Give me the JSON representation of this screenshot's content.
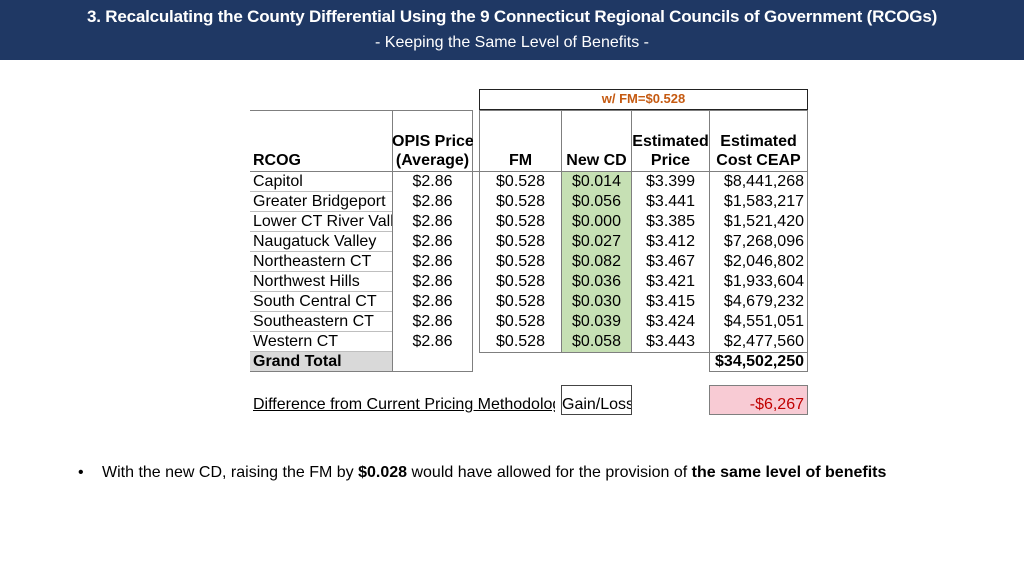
{
  "header": {
    "title": "3. Recalculating the County Differential Using the 9 Connecticut Regional Councils of Government (RCOGs)",
    "subtitle": "- Keeping the Same Level of Benefits -"
  },
  "table": {
    "fm_banner": "w/ FM=$0.528",
    "columns": {
      "rcog": "RCOG",
      "opis_line1": "OPIS Price",
      "opis_line2": "(Average)",
      "fm": "FM",
      "new_cd": "New CD",
      "est_price_line1": "Estimated",
      "est_price_line2": "Price",
      "est_cost_line1": "Estimated",
      "est_cost_line2": "Cost CEAP"
    },
    "rows": [
      {
        "rcog": "Capitol",
        "opis": "$2.86",
        "fm": "$0.528",
        "new_cd": "$0.014",
        "est_price": "$3.399",
        "est_cost": "$8,441,268"
      },
      {
        "rcog": "Greater Bridgeport",
        "opis": "$2.86",
        "fm": "$0.528",
        "new_cd": "$0.056",
        "est_price": "$3.441",
        "est_cost": "$1,583,217"
      },
      {
        "rcog": "Lower CT River Valley",
        "opis": "$2.86",
        "fm": "$0.528",
        "new_cd": "$0.000",
        "est_price": "$3.385",
        "est_cost": "$1,521,420"
      },
      {
        "rcog": "Naugatuck Valley",
        "opis": "$2.86",
        "fm": "$0.528",
        "new_cd": "$0.027",
        "est_price": "$3.412",
        "est_cost": "$7,268,096"
      },
      {
        "rcog": "Northeastern CT",
        "opis": "$2.86",
        "fm": "$0.528",
        "new_cd": "$0.082",
        "est_price": "$3.467",
        "est_cost": "$2,046,802"
      },
      {
        "rcog": "Northwest Hills",
        "opis": "$2.86",
        "fm": "$0.528",
        "new_cd": "$0.036",
        "est_price": "$3.421",
        "est_cost": "$1,933,604"
      },
      {
        "rcog": "South Central CT",
        "opis": "$2.86",
        "fm": "$0.528",
        "new_cd": "$0.030",
        "est_price": "$3.415",
        "est_cost": "$4,679,232"
      },
      {
        "rcog": "Southeastern CT",
        "opis": "$2.86",
        "fm": "$0.528",
        "new_cd": "$0.039",
        "est_price": "$3.424",
        "est_cost": "$4,551,051"
      },
      {
        "rcog": "Western CT",
        "opis": "$2.86",
        "fm": "$0.528",
        "new_cd": "$0.058",
        "est_price": "$3.443",
        "est_cost": "$2,477,560"
      }
    ],
    "grand_total_label": "Grand Total",
    "grand_total_value": "$34,502,250",
    "difference_label": "Difference from Current Pricing Methodology",
    "gain_loss_label": "Gain/Loss",
    "gain_loss_value": "-$6,267"
  },
  "bullet": {
    "marker": "•",
    "text_before": "With the new CD, raising the FM by ",
    "fm_increase": "$0.028",
    "text_middle": " would have allowed for the provision of ",
    "emphasis": "the same level of benefits"
  },
  "colors": {
    "header_bg": "#1f3864",
    "new_cd_bg": "#c6e0b4",
    "gain_loss_bg": "#f8cbd4",
    "banner_text": "#c55a11"
  }
}
